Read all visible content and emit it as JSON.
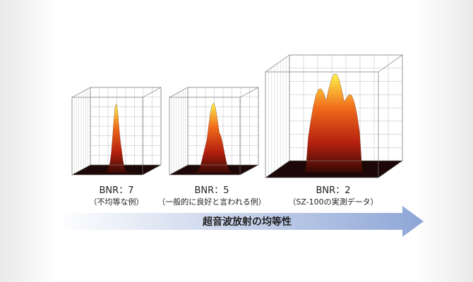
{
  "plots": [
    {
      "label": "BNR：7",
      "caption": "（不均等な例）"
    },
    {
      "label": "BNR：5",
      "caption": "（一般的に良好と言われる例）"
    },
    {
      "label": "BNR：2",
      "caption": "（SZ-100の実測データ）"
    }
  ],
  "arrow": {
    "label": "超音波放射の均等性"
  }
}
